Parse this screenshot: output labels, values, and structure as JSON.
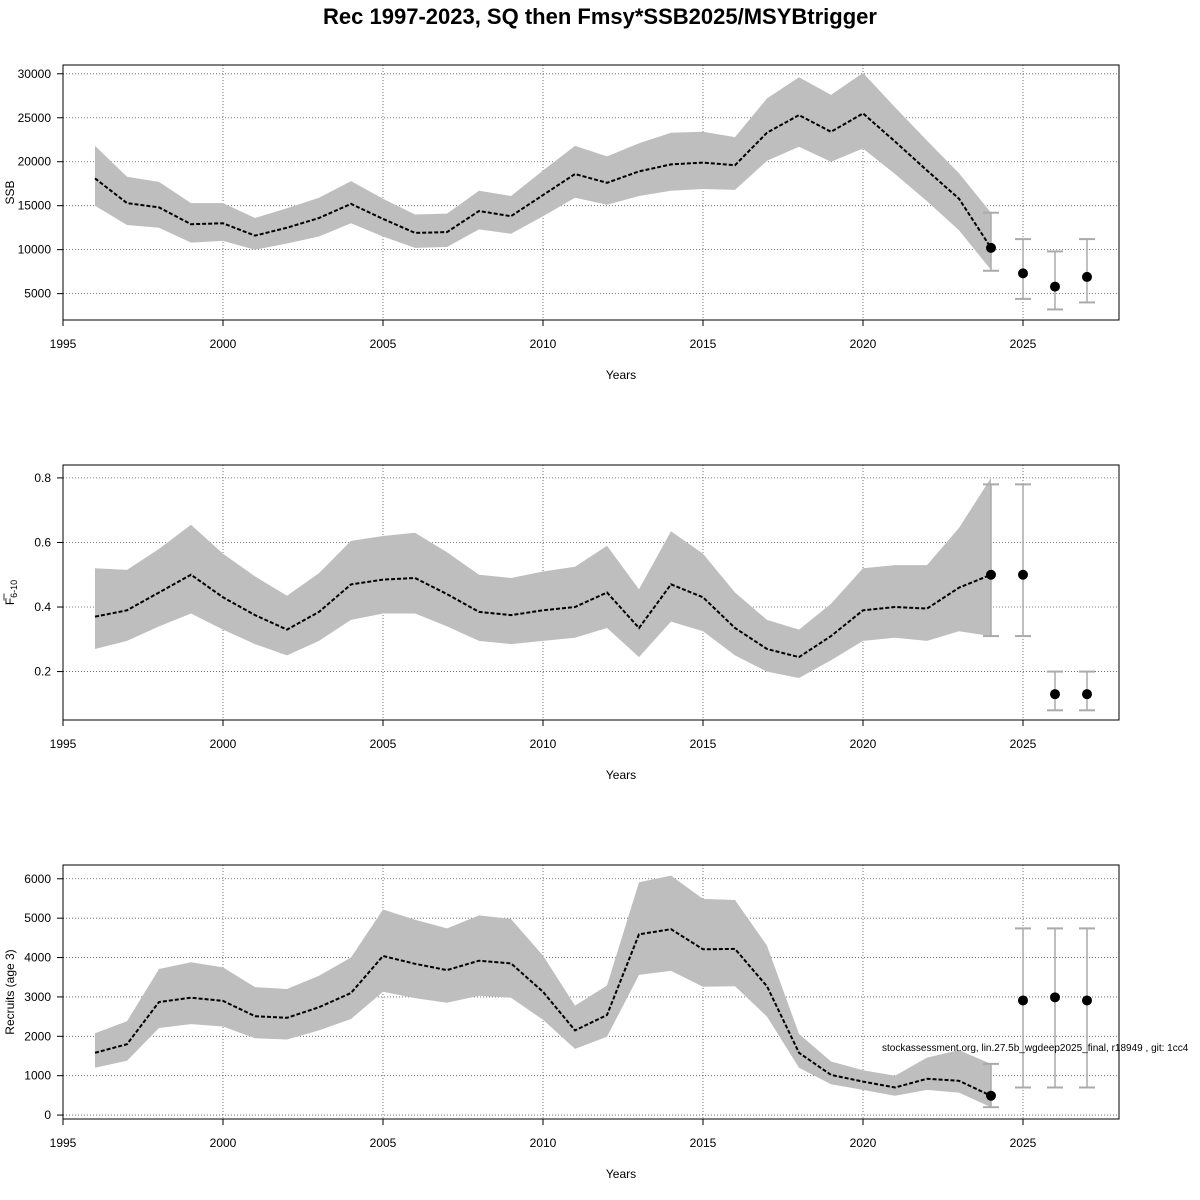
{
  "title": "Rec 1997-2023, SQ then Fmsy*SSB2025/MSYBtrigger",
  "note": "stockassessment.org, lin.27.5b_wgdeep2025_final, r18949 , git: 1cc4",
  "colors": {
    "band": "#bebebe",
    "bar": "#aaaaaa",
    "line": "#000000",
    "grid": "#555555"
  },
  "chart_data": [
    {
      "type": "line",
      "ylabel": "SSB",
      "xlabel": "Years",
      "xlim": [
        1995,
        2028
      ],
      "ylim": [
        2000,
        31000
      ],
      "xticks": [
        "1995",
        "2000",
        "2005",
        "2010",
        "2015",
        "2020",
        "2025"
      ],
      "yticks": [
        "5000",
        "10000",
        "15000",
        "20000",
        "25000",
        "30000"
      ],
      "grid": true,
      "years": [
        1996,
        1997,
        1998,
        1999,
        2000,
        2001,
        2002,
        2003,
        2004,
        2005,
        2006,
        2007,
        2008,
        2009,
        2010,
        2011,
        2012,
        2013,
        2014,
        2015,
        2016,
        2017,
        2018,
        2019,
        2020,
        2021,
        2022,
        2023,
        2024
      ],
      "estimate": [
        18100,
        15300,
        14800,
        12900,
        13000,
        11600,
        12500,
        13600,
        15200,
        13500,
        11900,
        12000,
        14400,
        13800,
        16200,
        18600,
        17600,
        18900,
        19700,
        19900,
        19600,
        23300,
        25300,
        23400,
        25500,
        22300,
        19000,
        15800,
        10200
      ],
      "lower": [
        15000,
        12800,
        12500,
        10800,
        11000,
        10000,
        10700,
        11500,
        13000,
        11500,
        10200,
        10300,
        12300,
        11800,
        13800,
        15900,
        15100,
        16100,
        16700,
        16900,
        16800,
        20100,
        21700,
        20000,
        21500,
        18600,
        15500,
        12200,
        7700
      ],
      "upper": [
        21800,
        18300,
        17700,
        15300,
        15300,
        13600,
        14700,
        15900,
        17800,
        15800,
        14000,
        14100,
        16700,
        16100,
        19000,
        21800,
        20600,
        22100,
        23300,
        23400,
        22800,
        27200,
        29600,
        27600,
        30100,
        26200,
        22400,
        18700,
        14200
      ],
      "forecast": [
        {
          "year": 2024,
          "value": 10200,
          "low": 7600,
          "high": 14200
        },
        {
          "year": 2025,
          "value": 7300,
          "low": 4400,
          "high": 11200
        },
        {
          "year": 2026,
          "value": 5800,
          "low": 3200,
          "high": 9800
        },
        {
          "year": 2027,
          "value": 6900,
          "low": 4000,
          "high": 11200
        }
      ]
    },
    {
      "type": "line",
      "ylabel": "F",
      "ylabel_sub": "6-10",
      "xlabel": "Years",
      "xlim": [
        1995,
        2028
      ],
      "ylim": [
        0.05,
        0.84
      ],
      "xticks": [
        "1995",
        "2000",
        "2005",
        "2010",
        "2015",
        "2020",
        "2025"
      ],
      "yticks": [
        "0.2",
        "0.4",
        "0.6",
        "0.8"
      ],
      "grid": true,
      "years": [
        1996,
        1997,
        1998,
        1999,
        2000,
        2001,
        2002,
        2003,
        2004,
        2005,
        2006,
        2007,
        2008,
        2009,
        2010,
        2011,
        2012,
        2013,
        2014,
        2015,
        2016,
        2017,
        2018,
        2019,
        2020,
        2021,
        2022,
        2023,
        2024
      ],
      "estimate": [
        0.37,
        0.39,
        0.445,
        0.5,
        0.43,
        0.375,
        0.33,
        0.385,
        0.47,
        0.485,
        0.49,
        0.44,
        0.385,
        0.375,
        0.39,
        0.4,
        0.445,
        0.335,
        0.47,
        0.43,
        0.335,
        0.27,
        0.245,
        0.31,
        0.39,
        0.4,
        0.395,
        0.46,
        0.5
      ],
      "lower": [
        0.27,
        0.295,
        0.34,
        0.38,
        0.33,
        0.285,
        0.25,
        0.295,
        0.36,
        0.38,
        0.38,
        0.34,
        0.295,
        0.285,
        0.295,
        0.305,
        0.335,
        0.245,
        0.355,
        0.325,
        0.25,
        0.2,
        0.18,
        0.235,
        0.295,
        0.305,
        0.295,
        0.325,
        0.31
      ],
      "upper": [
        0.52,
        0.515,
        0.58,
        0.655,
        0.565,
        0.495,
        0.435,
        0.505,
        0.605,
        0.62,
        0.63,
        0.57,
        0.5,
        0.49,
        0.51,
        0.525,
        0.59,
        0.455,
        0.635,
        0.565,
        0.445,
        0.36,
        0.33,
        0.41,
        0.52,
        0.53,
        0.53,
        0.645,
        0.8
      ],
      "forecast": [
        {
          "year": 2024,
          "value": 0.5,
          "low": 0.31,
          "high": 0.78
        },
        {
          "year": 2025,
          "value": 0.5,
          "low": 0.31,
          "high": 0.78
        },
        {
          "year": 2026,
          "value": 0.13,
          "low": 0.08,
          "high": 0.2
        },
        {
          "year": 2027,
          "value": 0.13,
          "low": 0.08,
          "high": 0.2
        }
      ]
    },
    {
      "type": "line",
      "ylabel": "Recruits (age 3)",
      "xlabel": "Years",
      "xlim": [
        1995,
        2028
      ],
      "ylim": [
        -100,
        6350
      ],
      "xticks": [
        "1995",
        "2000",
        "2005",
        "2010",
        "2015",
        "2020",
        "2025"
      ],
      "yticks": [
        "0",
        "1000",
        "2000",
        "3000",
        "4000",
        "5000",
        "6000"
      ],
      "grid": true,
      "years": [
        1996,
        1997,
        1998,
        1999,
        2000,
        2001,
        2002,
        2003,
        2004,
        2005,
        2006,
        2007,
        2008,
        2009,
        2010,
        2011,
        2012,
        2013,
        2014,
        2015,
        2016,
        2017,
        2018,
        2019,
        2020,
        2021,
        2022,
        2023,
        2024
      ],
      "estimate": [
        1580,
        1800,
        2870,
        2980,
        2900,
        2510,
        2470,
        2740,
        3100,
        4040,
        3840,
        3680,
        3920,
        3850,
        3130,
        2150,
        2540,
        4590,
        4720,
        4210,
        4220,
        3270,
        1580,
        1020,
        850,
        700,
        920,
        870,
        490
      ],
      "lower": [
        1200,
        1380,
        2210,
        2310,
        2250,
        1950,
        1920,
        2150,
        2440,
        3130,
        2970,
        2850,
        3030,
        2980,
        2420,
        1680,
        1990,
        3560,
        3660,
        3260,
        3270,
        2500,
        1200,
        780,
        640,
        490,
        640,
        570,
        200
      ],
      "upper": [
        2080,
        2380,
        3710,
        3880,
        3750,
        3250,
        3200,
        3540,
        4000,
        5220,
        4960,
        4740,
        5070,
        4980,
        4050,
        2780,
        3290,
        5910,
        6080,
        5490,
        5460,
        4300,
        2060,
        1360,
        1140,
        1000,
        1460,
        1650,
        1300
      ],
      "forecast": [
        {
          "year": 2024,
          "value": 490,
          "low": 200,
          "high": 1300
        },
        {
          "year": 2025,
          "value": 2910,
          "low": 700,
          "high": 4740
        },
        {
          "year": 2026,
          "value": 2990,
          "low": 700,
          "high": 4740
        },
        {
          "year": 2027,
          "value": 2910,
          "low": 700,
          "high": 4740
        }
      ]
    }
  ]
}
